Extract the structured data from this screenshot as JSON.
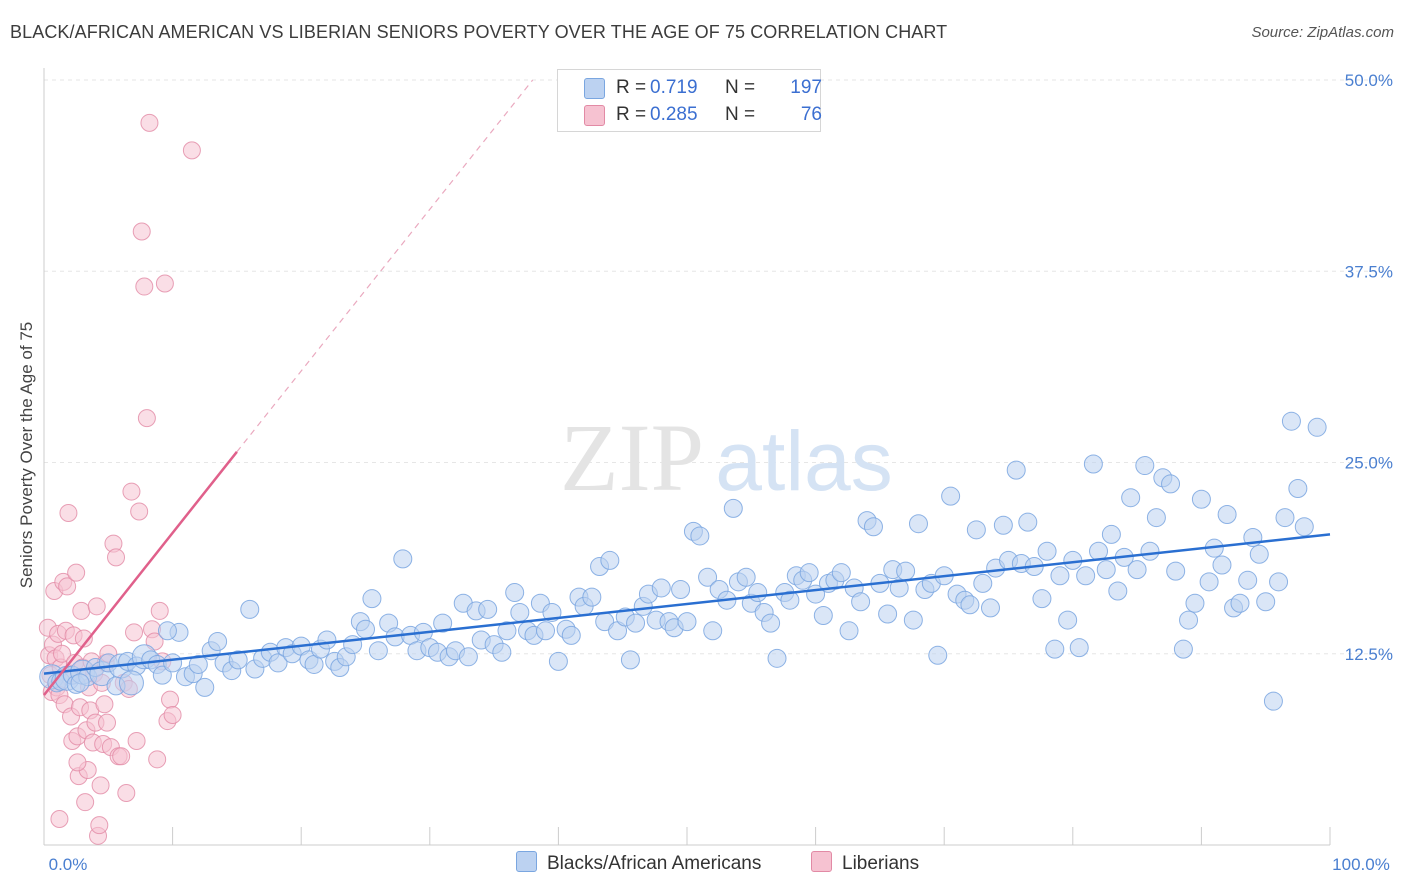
{
  "chart_data": {
    "type": "scatter",
    "title": "BLACK/AFRICAN AMERICAN VS LIBERIAN SENIORS POVERTY OVER THE AGE OF 75 CORRELATION CHART",
    "source": "Source: ZipAtlas.com",
    "xlabel": "",
    "ylabel": "Seniors Poverty Over the Age of 75",
    "xlim": [
      0,
      100
    ],
    "ylim": [
      0,
      50
    ],
    "x_tick_labels": [
      "0.0%",
      "100.0%"
    ],
    "y_ticks": [
      12.5,
      25.0,
      37.5,
      50.0
    ],
    "y_tick_labels": [
      "12.5%",
      "25.0%",
      "37.5%",
      "50.0%"
    ],
    "watermark": "ZIPatlas",
    "legend": {
      "r_label": "R =",
      "n_label": "N =",
      "entries": [
        {
          "name": "Blacks/African Americans",
          "r": "0.719",
          "n": "197",
          "color": "#7aa6e0",
          "fill": "#bcd2f1"
        },
        {
          "name": "Liberians",
          "r": "0.285",
          "n": "76",
          "color": "#e28aa5",
          "fill": "#f6c2d1"
        }
      ]
    },
    "series": [
      {
        "name": "Blacks/African Americans",
        "color": "#7aa6e0",
        "line_color": "#2a6fd1",
        "trend": {
          "x": [
            0,
            100
          ],
          "y": [
            11.2,
            20.3
          ]
        },
        "points": [
          [
            0.6,
            11.0
          ],
          [
            1.0,
            10.6
          ],
          [
            1.3,
            10.7
          ],
          [
            1.8,
            10.9
          ],
          [
            2.2,
            11.1
          ],
          [
            2.5,
            10.5
          ],
          [
            3.0,
            11.3
          ],
          [
            3.4,
            11.0
          ],
          [
            4.0,
            11.6
          ],
          [
            4.5,
            11.2
          ],
          [
            5.0,
            11.9
          ],
          [
            5.6,
            10.4
          ],
          [
            6.0,
            11.7
          ],
          [
            6.5,
            12.0
          ],
          [
            7.2,
            11.7
          ],
          [
            7.8,
            12.3
          ],
          [
            8.3,
            12.1
          ],
          [
            8.8,
            11.8
          ],
          [
            9.2,
            11.1
          ],
          [
            10.0,
            11.9
          ],
          [
            10.5,
            13.9
          ],
          [
            11.0,
            11.0
          ],
          [
            11.6,
            11.2
          ],
          [
            12.0,
            11.8
          ],
          [
            12.5,
            10.3
          ],
          [
            13.0,
            12.7
          ],
          [
            13.5,
            13.3
          ],
          [
            14.0,
            11.9
          ],
          [
            14.6,
            11.4
          ],
          [
            15.1,
            12.1
          ],
          [
            16.0,
            15.4
          ],
          [
            16.4,
            11.5
          ],
          [
            17.0,
            12.2
          ],
          [
            17.6,
            12.6
          ],
          [
            18.2,
            11.9
          ],
          [
            18.8,
            12.9
          ],
          [
            19.3,
            12.5
          ],
          [
            20.0,
            13.0
          ],
          [
            20.6,
            12.1
          ],
          [
            21.0,
            11.8
          ],
          [
            21.5,
            12.8
          ],
          [
            22.0,
            13.4
          ],
          [
            22.6,
            12.0
          ],
          [
            23.0,
            11.6
          ],
          [
            23.5,
            12.3
          ],
          [
            24.0,
            13.1
          ],
          [
            24.6,
            14.6
          ],
          [
            25.0,
            14.1
          ],
          [
            25.5,
            16.1
          ],
          [
            26.0,
            12.7
          ],
          [
            26.8,
            14.5
          ],
          [
            27.3,
            13.6
          ],
          [
            27.9,
            18.7
          ],
          [
            28.5,
            13.7
          ],
          [
            29.0,
            12.7
          ],
          [
            29.5,
            13.9
          ],
          [
            30.0,
            12.9
          ],
          [
            30.6,
            12.6
          ],
          [
            31.0,
            14.5
          ],
          [
            31.5,
            12.3
          ],
          [
            32.0,
            12.7
          ],
          [
            32.6,
            15.8
          ],
          [
            33.0,
            12.3
          ],
          [
            33.6,
            15.3
          ],
          [
            34.0,
            13.4
          ],
          [
            34.5,
            15.4
          ],
          [
            35.0,
            13.1
          ],
          [
            35.6,
            12.6
          ],
          [
            36.0,
            14.0
          ],
          [
            36.6,
            16.5
          ],
          [
            37.0,
            15.2
          ],
          [
            37.6,
            14.0
          ],
          [
            38.1,
            13.7
          ],
          [
            38.6,
            15.8
          ],
          [
            39.0,
            14.0
          ],
          [
            39.5,
            15.2
          ],
          [
            40.0,
            12.0
          ],
          [
            40.6,
            14.1
          ],
          [
            41.0,
            13.7
          ],
          [
            41.6,
            16.2
          ],
          [
            42.0,
            15.6
          ],
          [
            42.6,
            16.2
          ],
          [
            43.2,
            18.2
          ],
          [
            43.6,
            14.6
          ],
          [
            44.0,
            18.6
          ],
          [
            44.6,
            14.0
          ],
          [
            45.2,
            14.9
          ],
          [
            45.6,
            12.1
          ],
          [
            46.0,
            14.5
          ],
          [
            46.6,
            15.6
          ],
          [
            47.0,
            16.4
          ],
          [
            47.6,
            14.7
          ],
          [
            48.0,
            16.8
          ],
          [
            48.6,
            14.6
          ],
          [
            49.0,
            14.2
          ],
          [
            49.5,
            16.7
          ],
          [
            50.0,
            14.6
          ],
          [
            50.5,
            20.5
          ],
          [
            51.0,
            20.2
          ],
          [
            51.6,
            17.5
          ],
          [
            52.0,
            14.0
          ],
          [
            52.5,
            16.7
          ],
          [
            53.1,
            16.0
          ],
          [
            53.6,
            22.0
          ],
          [
            54.0,
            17.2
          ],
          [
            54.6,
            17.5
          ],
          [
            55.0,
            15.8
          ],
          [
            55.5,
            16.5
          ],
          [
            56.0,
            15.2
          ],
          [
            56.5,
            14.5
          ],
          [
            57.0,
            12.2
          ],
          [
            57.6,
            16.5
          ],
          [
            58.0,
            16.0
          ],
          [
            58.5,
            17.6
          ],
          [
            59.0,
            17.3
          ],
          [
            59.5,
            17.8
          ],
          [
            60.0,
            16.4
          ],
          [
            60.6,
            15.0
          ],
          [
            61.0,
            17.1
          ],
          [
            61.5,
            17.3
          ],
          [
            62.0,
            17.8
          ],
          [
            62.6,
            14.0
          ],
          [
            63.0,
            16.8
          ],
          [
            63.5,
            15.9
          ],
          [
            64.0,
            21.2
          ],
          [
            64.5,
            20.8
          ],
          [
            65.0,
            17.1
          ],
          [
            65.6,
            15.1
          ],
          [
            66.0,
            18.0
          ],
          [
            66.5,
            16.8
          ],
          [
            67.0,
            17.9
          ],
          [
            67.6,
            14.7
          ],
          [
            68.0,
            21.0
          ],
          [
            68.5,
            16.7
          ],
          [
            69.0,
            17.1
          ],
          [
            69.5,
            12.4
          ],
          [
            70.0,
            17.6
          ],
          [
            70.5,
            22.8
          ],
          [
            71.0,
            16.4
          ],
          [
            71.6,
            16.0
          ],
          [
            72.0,
            15.7
          ],
          [
            72.5,
            20.6
          ],
          [
            73.0,
            17.1
          ],
          [
            73.6,
            15.5
          ],
          [
            74.0,
            18.1
          ],
          [
            74.6,
            20.9
          ],
          [
            75.0,
            18.6
          ],
          [
            75.6,
            24.5
          ],
          [
            76.0,
            18.4
          ],
          [
            76.5,
            21.1
          ],
          [
            77.0,
            18.2
          ],
          [
            77.6,
            16.1
          ],
          [
            78.0,
            19.2
          ],
          [
            78.6,
            12.8
          ],
          [
            79.0,
            17.6
          ],
          [
            79.6,
            14.7
          ],
          [
            80.0,
            18.6
          ],
          [
            80.5,
            12.9
          ],
          [
            81.0,
            17.6
          ],
          [
            81.6,
            24.9
          ],
          [
            82.0,
            19.2
          ],
          [
            82.6,
            18.0
          ],
          [
            83.0,
            20.3
          ],
          [
            83.5,
            16.6
          ],
          [
            84.0,
            18.8
          ],
          [
            84.5,
            22.7
          ],
          [
            85.0,
            18.0
          ],
          [
            85.6,
            24.8
          ],
          [
            86.0,
            19.2
          ],
          [
            86.5,
            21.4
          ],
          [
            87.0,
            24.0
          ],
          [
            87.6,
            23.6
          ],
          [
            88.0,
            17.9
          ],
          [
            88.6,
            12.8
          ],
          [
            89.0,
            14.7
          ],
          [
            89.5,
            15.8
          ],
          [
            90.0,
            22.6
          ],
          [
            90.6,
            17.2
          ],
          [
            91.0,
            19.4
          ],
          [
            91.6,
            18.3
          ],
          [
            92.0,
            21.6
          ],
          [
            92.5,
            15.5
          ],
          [
            93.0,
            15.8
          ],
          [
            93.6,
            17.3
          ],
          [
            94.0,
            20.1
          ],
          [
            94.5,
            19.0
          ],
          [
            95.0,
            15.9
          ],
          [
            95.6,
            9.4
          ],
          [
            96.0,
            17.2
          ],
          [
            96.5,
            21.4
          ],
          [
            97.0,
            27.7
          ],
          [
            97.5,
            23.3
          ],
          [
            98.0,
            20.8
          ],
          [
            99.0,
            27.3
          ],
          [
            2.8,
            10.6
          ],
          [
            6.8,
            10.6
          ],
          [
            9.6,
            14.0
          ]
        ]
      },
      {
        "name": "Liberians",
        "color": "#e28aa5",
        "line_color": "#e0608b",
        "trend": {
          "x": [
            0,
            15
          ],
          "y": [
            9.8,
            25.7
          ]
        },
        "trend_extension": {
          "x": [
            15,
            38
          ],
          "y": [
            25.7,
            50.0
          ]
        },
        "points": [
          [
            0.3,
            14.2
          ],
          [
            0.4,
            12.4
          ],
          [
            0.5,
            11.1
          ],
          [
            0.6,
            10.0
          ],
          [
            0.7,
            13.1
          ],
          [
            0.8,
            16.6
          ],
          [
            0.9,
            12.2
          ],
          [
            1.0,
            10.3
          ],
          [
            1.1,
            13.8
          ],
          [
            1.2,
            9.8
          ],
          [
            1.3,
            11.6
          ],
          [
            1.4,
            12.5
          ],
          [
            1.5,
            17.2
          ],
          [
            1.6,
            9.2
          ],
          [
            1.7,
            14.0
          ],
          [
            1.8,
            16.9
          ],
          [
            1.9,
            21.7
          ],
          [
            2.0,
            11.2
          ],
          [
            2.1,
            8.4
          ],
          [
            2.2,
            6.8
          ],
          [
            2.3,
            13.7
          ],
          [
            2.4,
            11.9
          ],
          [
            2.5,
            17.8
          ],
          [
            2.6,
            7.1
          ],
          [
            2.7,
            4.5
          ],
          [
            2.8,
            9.0
          ],
          [
            2.9,
            15.3
          ],
          [
            3.0,
            11.6
          ],
          [
            3.1,
            13.5
          ],
          [
            3.2,
            2.8
          ],
          [
            3.3,
            7.5
          ],
          [
            3.4,
            4.9
          ],
          [
            3.5,
            10.3
          ],
          [
            3.6,
            8.8
          ],
          [
            3.7,
            12.0
          ],
          [
            3.8,
            6.7
          ],
          [
            3.9,
            11.2
          ],
          [
            4.0,
            8.0
          ],
          [
            4.1,
            15.6
          ],
          [
            4.2,
            0.6
          ],
          [
            4.3,
            1.3
          ],
          [
            4.4,
            3.9
          ],
          [
            4.5,
            10.6
          ],
          [
            4.6,
            6.6
          ],
          [
            4.7,
            9.2
          ],
          [
            4.8,
            11.9
          ],
          [
            4.9,
            8.0
          ],
          [
            5.0,
            12.5
          ],
          [
            5.2,
            6.4
          ],
          [
            5.4,
            19.7
          ],
          [
            5.6,
            18.8
          ],
          [
            5.8,
            5.8
          ],
          [
            6.0,
            5.8
          ],
          [
            6.2,
            10.6
          ],
          [
            6.4,
            3.4
          ],
          [
            6.6,
            10.2
          ],
          [
            6.8,
            23.1
          ],
          [
            7.0,
            13.9
          ],
          [
            7.2,
            6.8
          ],
          [
            7.4,
            21.8
          ],
          [
            7.6,
            40.1
          ],
          [
            7.8,
            36.5
          ],
          [
            8.0,
            27.9
          ],
          [
            8.2,
            47.2
          ],
          [
            8.4,
            14.1
          ],
          [
            8.6,
            13.3
          ],
          [
            8.8,
            5.6
          ],
          [
            9.0,
            15.3
          ],
          [
            9.2,
            12.0
          ],
          [
            9.4,
            36.7
          ],
          [
            9.6,
            8.1
          ],
          [
            9.8,
            9.5
          ],
          [
            10.0,
            8.5
          ],
          [
            11.5,
            45.4
          ],
          [
            1.2,
            1.7
          ],
          [
            2.6,
            5.4
          ]
        ]
      }
    ]
  }
}
